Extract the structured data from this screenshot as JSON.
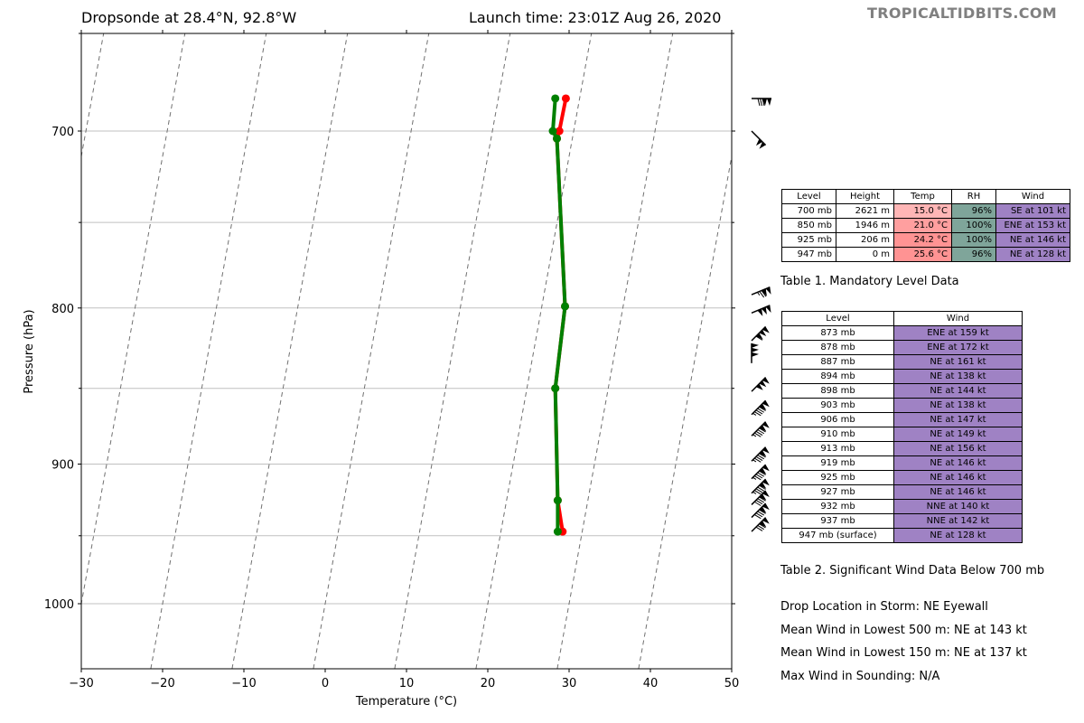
{
  "header": {
    "title_left": "Dropsonde at 28.4°N, 92.8°W",
    "title_right": "Launch time: 23:01Z Aug 26, 2020",
    "watermark": "TROPICALTIDBITS.COM"
  },
  "colors": {
    "temperature_line": "#ff0000",
    "dewpoint_line": "#008000",
    "temp_cell_700": "#ffb6b6",
    "temp_cell_850": "#ff9f9f",
    "temp_cell_925": "#ff9393",
    "temp_cell_947": "#ff9393",
    "rh_cell": "#7fa59a",
    "wind_cell": "#9f82c4"
  },
  "chart_data": {
    "type": "line",
    "title": "Dropsonde at 28.4°N, 92.8°W",
    "xlabel": "Temperature (°C)",
    "ylabel": "Pressure (hPa)",
    "xlim": [
      -30,
      50
    ],
    "ylim": [
      1040,
      660
    ],
    "y_scale": "log",
    "xticks": [
      -30,
      -20,
      -10,
      0,
      10,
      20,
      30,
      40,
      50
    ],
    "xtick_labels": [
      "−30",
      "−20",
      "−10",
      "0",
      "10",
      "20",
      "30",
      "40",
      "50"
    ],
    "yticks": [
      700,
      800,
      900,
      1000
    ],
    "ytick_labels": [
      "700",
      "800",
      "900",
      "1000"
    ],
    "minor_yticks": [
      750,
      850,
      950
    ],
    "grid_pressures": [
      700,
      750,
      800,
      850,
      900,
      950,
      1000
    ],
    "isotherms": [
      -50,
      -40,
      -30,
      -20,
      -10,
      0,
      10,
      20,
      30,
      40
    ],
    "series": [
      {
        "name": "Temperature",
        "points": [
          [
            29.6,
            683
          ],
          [
            28.8,
            700
          ],
          [
            28.5,
            704
          ],
          [
            29.5,
            799
          ],
          [
            28.3,
            850
          ],
          [
            28.6,
            925
          ],
          [
            29.2,
            947
          ]
        ]
      },
      {
        "name": "Dewpoint",
        "points": [
          [
            28.3,
            683
          ],
          [
            28.0,
            700
          ],
          [
            28.5,
            704
          ],
          [
            29.5,
            799
          ],
          [
            28.3,
            850
          ],
          [
            28.6,
            925
          ],
          [
            28.6,
            947
          ]
        ]
      }
    ],
    "wind_barbs": [
      {
        "p": 683,
        "dir": "E",
        "kt": 130
      },
      {
        "p": 700,
        "dir": "SE",
        "kt": 101
      },
      {
        "p": 792,
        "dir": "ENE",
        "kt": 125
      },
      {
        "p": 803,
        "dir": "ENE",
        "kt": 150
      },
      {
        "p": 820,
        "dir": "NE",
        "kt": 160
      },
      {
        "p": 834,
        "dir": "N",
        "kt": 150
      },
      {
        "p": 852,
        "dir": "NE",
        "kt": 150
      },
      {
        "p": 867,
        "dir": "NE",
        "kt": 145
      },
      {
        "p": 881,
        "dir": "NE",
        "kt": 145
      },
      {
        "p": 898,
        "dir": "NE",
        "kt": 145
      },
      {
        "p": 910,
        "dir": "NE",
        "kt": 145
      },
      {
        "p": 920,
        "dir": "NE",
        "kt": 145
      },
      {
        "p": 928,
        "dir": "NE",
        "kt": 140
      },
      {
        "p": 937,
        "dir": "NE",
        "kt": 140
      },
      {
        "p": 947,
        "dir": "NE",
        "kt": 130
      }
    ]
  },
  "table1": {
    "headers": [
      "Level",
      "Height",
      "Temp",
      "RH",
      "Wind"
    ],
    "rows": [
      [
        "700 mb",
        "2621 m",
        "15.0 °C",
        "96%",
        "SE at 101 kt"
      ],
      [
        "850 mb",
        "1946 m",
        "21.0 °C",
        "100%",
        "ENE at 153 kt"
      ],
      [
        "925 mb",
        "206 m",
        "24.2 °C",
        "100%",
        "NE at 146 kt"
      ],
      [
        "947 mb",
        "0 m",
        "25.6 °C",
        "96%",
        "NE at 128 kt"
      ]
    ],
    "caption": "Table 1. Mandatory Level Data"
  },
  "table2": {
    "headers": [
      "Level",
      "Wind"
    ],
    "rows": [
      [
        "873 mb",
        "ENE at 159 kt"
      ],
      [
        "878 mb",
        "ENE at 172 kt"
      ],
      [
        "887 mb",
        "NE at 161 kt"
      ],
      [
        "894 mb",
        "NE at 138 kt"
      ],
      [
        "898 mb",
        "NE at 144 kt"
      ],
      [
        "903 mb",
        "NE at 138 kt"
      ],
      [
        "906 mb",
        "NE at 147 kt"
      ],
      [
        "910 mb",
        "NE at 149 kt"
      ],
      [
        "913 mb",
        "NE at 156 kt"
      ],
      [
        "919 mb",
        "NE at 146 kt"
      ],
      [
        "925 mb",
        "NE at 146 kt"
      ],
      [
        "927 mb",
        "NE at 146 kt"
      ],
      [
        "932 mb",
        "NNE at 140 kt"
      ],
      [
        "937 mb",
        "NNE at 142 kt"
      ],
      [
        "947 mb (surface)",
        "NE at 128 kt"
      ]
    ],
    "caption": "Table 2. Significant Wind Data Below 700 mb"
  },
  "info": {
    "drop_location": "Drop Location in Storm: NE Eyewall",
    "mean_wind_500": "Mean Wind in Lowest 500 m:  NE at 143 kt",
    "mean_wind_150": "Mean Wind in Lowest 150 m:  NE at 137 kt",
    "max_wind": "Max Wind in Sounding:  N/A"
  }
}
